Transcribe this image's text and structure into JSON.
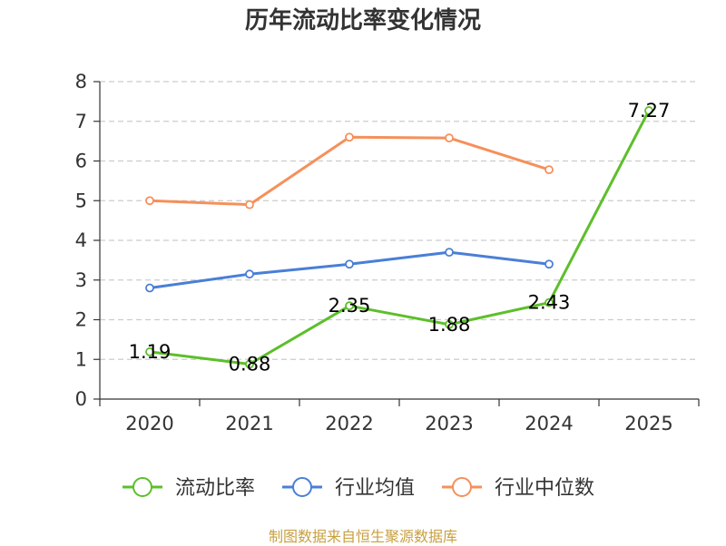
{
  "chart_data": {
    "type": "line",
    "title": "历年流动比率变化情况",
    "categories": [
      "2020",
      "2021",
      "2022",
      "2023",
      "2024",
      "2025"
    ],
    "ylim": [
      0,
      8
    ],
    "yticks": [
      0,
      1,
      2,
      3,
      4,
      5,
      6,
      7,
      8
    ],
    "grid": true,
    "legend_position": "bottom",
    "series": [
      {
        "name": "流动比率",
        "color": "#5cbf2a",
        "values": [
          1.19,
          0.88,
          2.35,
          1.88,
          2.43,
          7.27
        ],
        "labels": [
          "1.19",
          "0.88",
          "2.35",
          "1.88",
          "2.43",
          "7.27"
        ]
      },
      {
        "name": "行业均值",
        "color": "#4a7fd6",
        "values": [
          2.8,
          3.15,
          3.4,
          3.7,
          3.4,
          null
        ]
      },
      {
        "name": "行业中位数",
        "color": "#f5905a",
        "values": [
          5.0,
          4.9,
          6.6,
          6.58,
          5.78,
          null
        ]
      }
    ]
  },
  "footer": {
    "source": "制图数据来自恒生聚源数据库"
  }
}
